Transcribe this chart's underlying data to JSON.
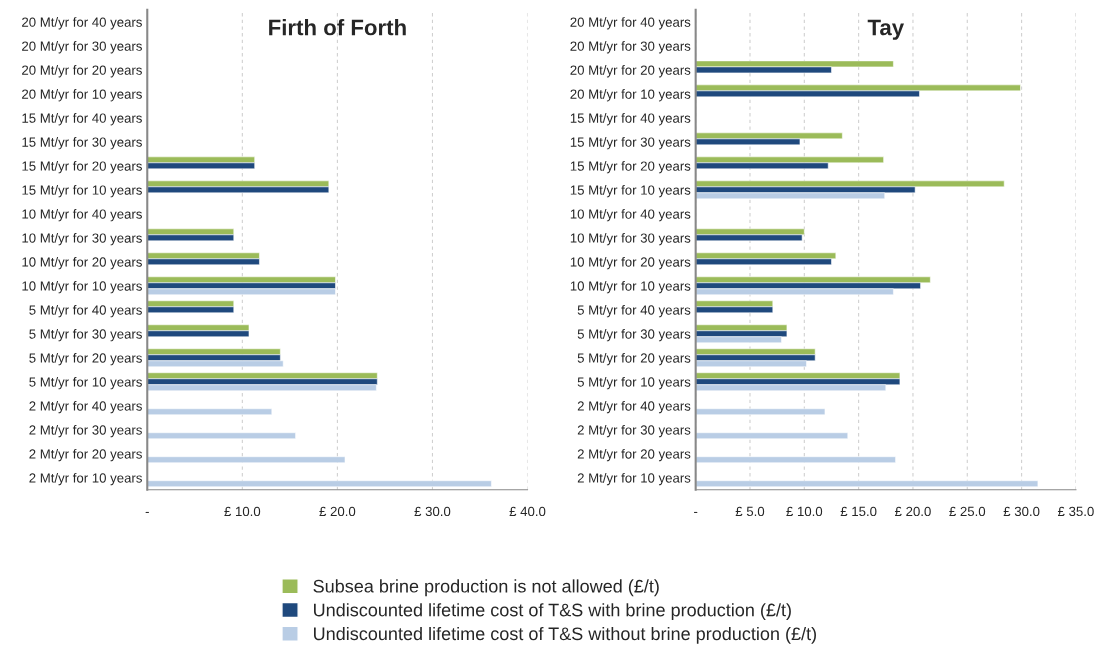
{
  "chart_data": [
    {
      "type": "bar",
      "orientation": "horizontal",
      "title": "Firth of Forth",
      "categories": [
        "20 Mt/yr for 40 years",
        "20 Mt/yr for 30 years",
        "20 Mt/yr for 20 years",
        "20 Mt/yr for 10 years",
        "15 Mt/yr for 40 years",
        "15 Mt/yr for 30 years",
        "15 Mt/yr for 20 years",
        "15 Mt/yr for 10 years",
        "10 Mt/yr for 40 years",
        "10 Mt/yr for 30 years",
        "10 Mt/yr for 20 years",
        "10 Mt/yr for 10 years",
        "5 Mt/yr for 40 years",
        "5 Mt/yr for 30 years",
        "5 Mt/yr for 20 years",
        "5 Mt/yr for 10 years",
        "2 Mt/yr for 40 years",
        "2 Mt/yr for 30 years",
        "2 Mt/yr for 20 years",
        "2 Mt/yr for 10 years"
      ],
      "series": [
        {
          "name": "Subsea brine production is not allowed (£/t)",
          "color": "#9bbb59",
          "values": [
            null,
            null,
            null,
            null,
            null,
            null,
            11.3,
            19.1,
            null,
            9.1,
            11.8,
            19.8,
            9.1,
            10.7,
            14.0,
            24.2,
            null,
            null,
            null,
            null
          ]
        },
        {
          "name": "Undiscounted lifetime cost of T&S with brine production (£/t)",
          "color": "#1f497d",
          "values": [
            null,
            null,
            null,
            null,
            null,
            null,
            11.3,
            19.1,
            null,
            9.1,
            11.8,
            19.8,
            9.1,
            10.7,
            14.0,
            24.2,
            null,
            null,
            null,
            null
          ]
        },
        {
          "name": "Undiscounted lifetime cost of T&S without brine production (£/t)",
          "color": "#b9cde5",
          "values": [
            null,
            null,
            null,
            null,
            null,
            null,
            null,
            null,
            null,
            null,
            null,
            19.8,
            null,
            null,
            14.3,
            24.1,
            13.1,
            15.6,
            20.8,
            36.2
          ]
        }
      ],
      "xlim": [
        0,
        40
      ],
      "xticks": [
        {
          "value": 0,
          "label": "-"
        },
        {
          "value": 10,
          "label": "£ 10.0"
        },
        {
          "value": 20,
          "label": "£ 20.0"
        },
        {
          "value": 30,
          "label": "£ 30.0"
        },
        {
          "value": 40,
          "label": "£ 40.0"
        }
      ],
      "grid": "x",
      "legend": "bottom"
    },
    {
      "type": "bar",
      "orientation": "horizontal",
      "title": "Tay",
      "categories": [
        "20 Mt/yr for 40 years",
        "20 Mt/yr for 30 years",
        "20 Mt/yr for 20 years",
        "20 Mt/yr for 10 years",
        "15 Mt/yr for 40 years",
        "15 Mt/yr for 30 years",
        "15 Mt/yr for 20 years",
        "15 Mt/yr for 10 years",
        "10 Mt/yr for 40 years",
        "10 Mt/yr for 30 years",
        "10 Mt/yr for 20 years",
        "10 Mt/yr for 10 years",
        "5 Mt/yr for 40 years",
        "5 Mt/yr for 30 years",
        "5 Mt/yr for 20 years",
        "5 Mt/yr for 10 years",
        "2 Mt/yr for 40 years",
        "2 Mt/yr for 30 years",
        "2 Mt/yr for 20 years",
        "2 Mt/yr for 10 years"
      ],
      "series": [
        {
          "color": "#9bbb59",
          "values": [
            null,
            null,
            18.2,
            29.9,
            null,
            13.5,
            17.3,
            28.4,
            null,
            10.0,
            12.9,
            21.6,
            7.1,
            8.4,
            11.0,
            18.8,
            null,
            null,
            null,
            null
          ]
        },
        {
          "color": "#1f497d",
          "values": [
            null,
            null,
            12.5,
            20.6,
            null,
            9.6,
            12.2,
            20.2,
            null,
            9.8,
            12.5,
            20.7,
            7.1,
            8.4,
            11.0,
            18.8,
            null,
            null,
            null,
            null
          ]
        },
        {
          "color": "#b9cde5",
          "values": [
            null,
            null,
            null,
            null,
            null,
            null,
            null,
            17.4,
            null,
            null,
            null,
            18.2,
            null,
            7.9,
            10.2,
            17.5,
            11.9,
            14.0,
            18.4,
            31.5
          ]
        }
      ],
      "xlim": [
        0,
        35
      ],
      "xticks": [
        {
          "value": 0,
          "label": "-"
        },
        {
          "value": 5,
          "label": "£ 5.0"
        },
        {
          "value": 10,
          "label": "£ 10.0"
        },
        {
          "value": 15,
          "label": "£ 15.0"
        },
        {
          "value": 20,
          "label": "£ 20.0"
        },
        {
          "value": 25,
          "label": "£ 25.0"
        },
        {
          "value": 30,
          "label": "£ 30.0"
        },
        {
          "value": 35,
          "label": "£ 35.0"
        }
      ],
      "grid": "x"
    }
  ]
}
